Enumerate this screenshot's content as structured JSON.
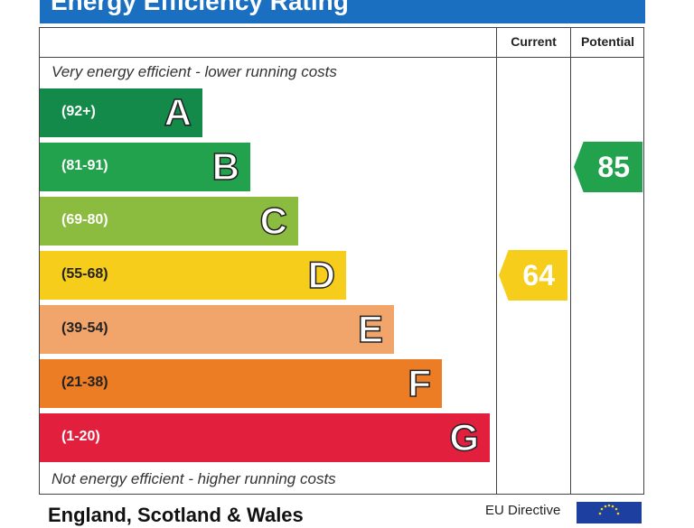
{
  "title": "Energy Efficiency Rating",
  "headers": {
    "current": "Current",
    "potential": "Potential"
  },
  "top_note": "Very energy efficient - lower running costs",
  "bottom_note": "Not energy efficient - higher running costs",
  "footer": {
    "region": "England, Scotland & Wales",
    "directive": "EU Directive"
  },
  "chart_data": {
    "type": "bar",
    "categories": [
      "A",
      "B",
      "C",
      "D",
      "E",
      "F",
      "G"
    ],
    "bands": [
      {
        "letter": "A",
        "range": "(92+)",
        "color": "#138a4a"
      },
      {
        "letter": "B",
        "range": "(81-91)",
        "color": "#23a24d"
      },
      {
        "letter": "C",
        "range": "(69-80)",
        "color": "#8cbc3f"
      },
      {
        "letter": "D",
        "range": "(55-68)",
        "color": "#f7cd1b"
      },
      {
        "letter": "E",
        "range": "(39-54)",
        "color": "#f2a56a"
      },
      {
        "letter": "F",
        "range": "(21-38)",
        "color": "#ec7d24"
      },
      {
        "letter": "G",
        "range": "(1-20)",
        "color": "#e21f3d"
      }
    ],
    "current": {
      "value": "64",
      "band": "D",
      "color": "#f7cd1b"
    },
    "potential": {
      "value": "85",
      "band": "B",
      "color": "#23a24d"
    }
  }
}
